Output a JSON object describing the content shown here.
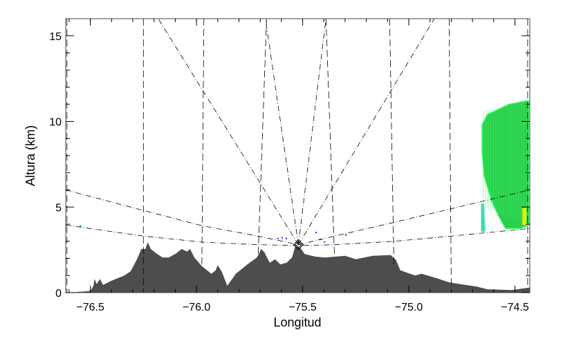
{
  "chart_data": {
    "type": "area",
    "title": "",
    "xlabel": "Longitud",
    "ylabel": "Altura (km)",
    "xlim": [
      -76.616,
      -74.43
    ],
    "ylim": [
      0,
      16
    ],
    "xticks": [
      -76.5,
      -76.0,
      -75.5,
      -75.0,
      -74.5
    ],
    "xtick_labels": [
      "−76.5",
      "−76.0",
      "−75.5",
      "−75.0",
      "−74.5"
    ],
    "yticks": [
      0,
      5,
      10,
      15
    ],
    "ytick_labels": [
      "0",
      "5",
      "10",
      "15"
    ],
    "grid": false,
    "colors": {
      "terrain": "#4d4d4d",
      "echo_main": "#22cc44",
      "echo_light": "#33ff66",
      "echo_edge": "#33ddaa",
      "echo_core": "#ffee00",
      "clutter": "#2222dd",
      "guides": "#000000"
    },
    "radar": {
      "lon": -75.52,
      "alt": 2.8,
      "marker": "diamond"
    },
    "terrain": [
      [
        -76.616,
        0
      ],
      [
        -76.55,
        0.05
      ],
      [
        -76.5,
        0.1
      ],
      [
        -76.485,
        0.4
      ],
      [
        -76.48,
        0.8
      ],
      [
        -76.47,
        0.5
      ],
      [
        -76.455,
        0.8
      ],
      [
        -76.44,
        0.45
      ],
      [
        -76.4,
        0.7
      ],
      [
        -76.34,
        1.0
      ],
      [
        -76.31,
        1.25
      ],
      [
        -76.28,
        1.95
      ],
      [
        -76.26,
        2.55
      ],
      [
        -76.24,
        2.55
      ],
      [
        -76.23,
        2.95
      ],
      [
        -76.215,
        2.55
      ],
      [
        -76.19,
        2.3
      ],
      [
        -76.16,
        2.05
      ],
      [
        -76.13,
        2.05
      ],
      [
        -76.095,
        2.3
      ],
      [
        -76.07,
        2.55
      ],
      [
        -76.045,
        2.4
      ],
      [
        -76.03,
        2.55
      ],
      [
        -76.01,
        2.05
      ],
      [
        -75.975,
        1.55
      ],
      [
        -75.93,
        1.1
      ],
      [
        -75.91,
        1.3
      ],
      [
        -75.9,
        1.6
      ],
      [
        -75.88,
        1.2
      ],
      [
        -75.855,
        0.4
      ],
      [
        -75.815,
        1.1
      ],
      [
        -75.785,
        1.4
      ],
      [
        -75.75,
        1.75
      ],
      [
        -75.715,
        2.05
      ],
      [
        -75.695,
        2.55
      ],
      [
        -75.68,
        2.35
      ],
      [
        -75.655,
        1.75
      ],
      [
        -75.63,
        1.95
      ],
      [
        -75.605,
        1.65
      ],
      [
        -75.575,
        1.75
      ],
      [
        -75.55,
        2.05
      ],
      [
        -75.535,
        2.7
      ],
      [
        -75.51,
        2.6
      ],
      [
        -75.49,
        2.25
      ],
      [
        -75.44,
        2.1
      ],
      [
        -75.395,
        2.05
      ],
      [
        -75.3,
        2.15
      ],
      [
        -75.25,
        1.95
      ],
      [
        -75.17,
        2.15
      ],
      [
        -75.085,
        2.2
      ],
      [
        -75.06,
        1.9
      ],
      [
        -75.04,
        1.3
      ],
      [
        -74.97,
        1.0
      ],
      [
        -74.94,
        1.1
      ],
      [
        -74.87,
        0.85
      ],
      [
        -74.81,
        0.6
      ],
      [
        -74.76,
        0.5
      ],
      [
        -74.68,
        0.35
      ],
      [
        -74.63,
        0.2
      ],
      [
        -74.515,
        0.15
      ],
      [
        -74.43,
        0.3
      ]
    ],
    "range_markers": [
      [
        [
          -76.61,
          16
        ],
        [
          -76.61,
          0
        ]
      ],
      [
        [
          -76.25,
          16
        ],
        [
          -76.25,
          0
        ]
      ],
      [
        [
          -75.965,
          16
        ],
        [
          -75.975,
          1.5
        ]
      ],
      [
        [
          -75.67,
          16
        ],
        [
          -75.71,
          2.0
        ]
      ],
      [
        [
          -75.39,
          16
        ],
        [
          -75.35,
          2.1
        ]
      ],
      [
        [
          -75.09,
          16
        ],
        [
          -75.07,
          1.5
        ]
      ],
      [
        [
          -74.81,
          16
        ],
        [
          -74.8,
          0.5
        ]
      ],
      [
        [
          -74.44,
          16
        ],
        [
          -74.44,
          0.3
        ]
      ]
    ],
    "beam_rays": [
      [
        [
          -75.52,
          2.8
        ],
        [
          -76.18,
          16
        ]
      ],
      [
        [
          -75.52,
          2.8
        ],
        [
          -75.675,
          16
        ]
      ],
      [
        [
          -75.52,
          2.8
        ],
        [
          -75.39,
          16
        ]
      ],
      [
        [
          -75.52,
          2.8
        ],
        [
          -74.88,
          16
        ]
      ]
    ],
    "elevation_arcs": [
      [
        [
          -76.616,
          6.0
        ],
        [
          -76.25,
          4.8
        ],
        [
          -75.97,
          3.9
        ],
        [
          -75.71,
          3.3
        ],
        [
          -75.52,
          2.8
        ],
        [
          -75.35,
          3.3
        ],
        [
          -75.07,
          4.1
        ],
        [
          -74.8,
          4.9
        ],
        [
          -74.43,
          6.0
        ]
      ],
      [
        [
          -76.616,
          3.95
        ],
        [
          -76.25,
          3.3
        ],
        [
          -75.97,
          2.95
        ],
        [
          -75.71,
          2.8
        ],
        [
          -75.52,
          2.75
        ],
        [
          -75.35,
          2.8
        ],
        [
          -75.07,
          3.0
        ],
        [
          -74.8,
          3.3
        ],
        [
          -74.43,
          3.75
        ]
      ]
    ],
    "echoes": [
      {
        "level": "main",
        "polygon": [
          [
            -74.655,
            9.8
          ],
          [
            -74.63,
            10.4
          ],
          [
            -74.53,
            11.0
          ],
          [
            -74.445,
            11.2
          ],
          [
            -74.435,
            11.2
          ],
          [
            -74.435,
            3.95
          ],
          [
            -74.475,
            3.75
          ],
          [
            -74.545,
            3.75
          ],
          [
            -74.58,
            4.55
          ],
          [
            -74.61,
            5.35
          ],
          [
            -74.645,
            6.8
          ],
          [
            -74.655,
            8.2
          ]
        ]
      },
      {
        "level": "edge",
        "polygon": [
          [
            -74.66,
            3.55
          ],
          [
            -74.66,
            5.2
          ],
          [
            -74.645,
            5.2
          ],
          [
            -74.64,
            3.55
          ]
        ]
      },
      {
        "level": "core",
        "polygon": [
          [
            -74.465,
            3.95
          ],
          [
            -74.465,
            4.95
          ],
          [
            -74.445,
            4.95
          ],
          [
            -74.445,
            3.95
          ]
        ]
      }
    ]
  }
}
